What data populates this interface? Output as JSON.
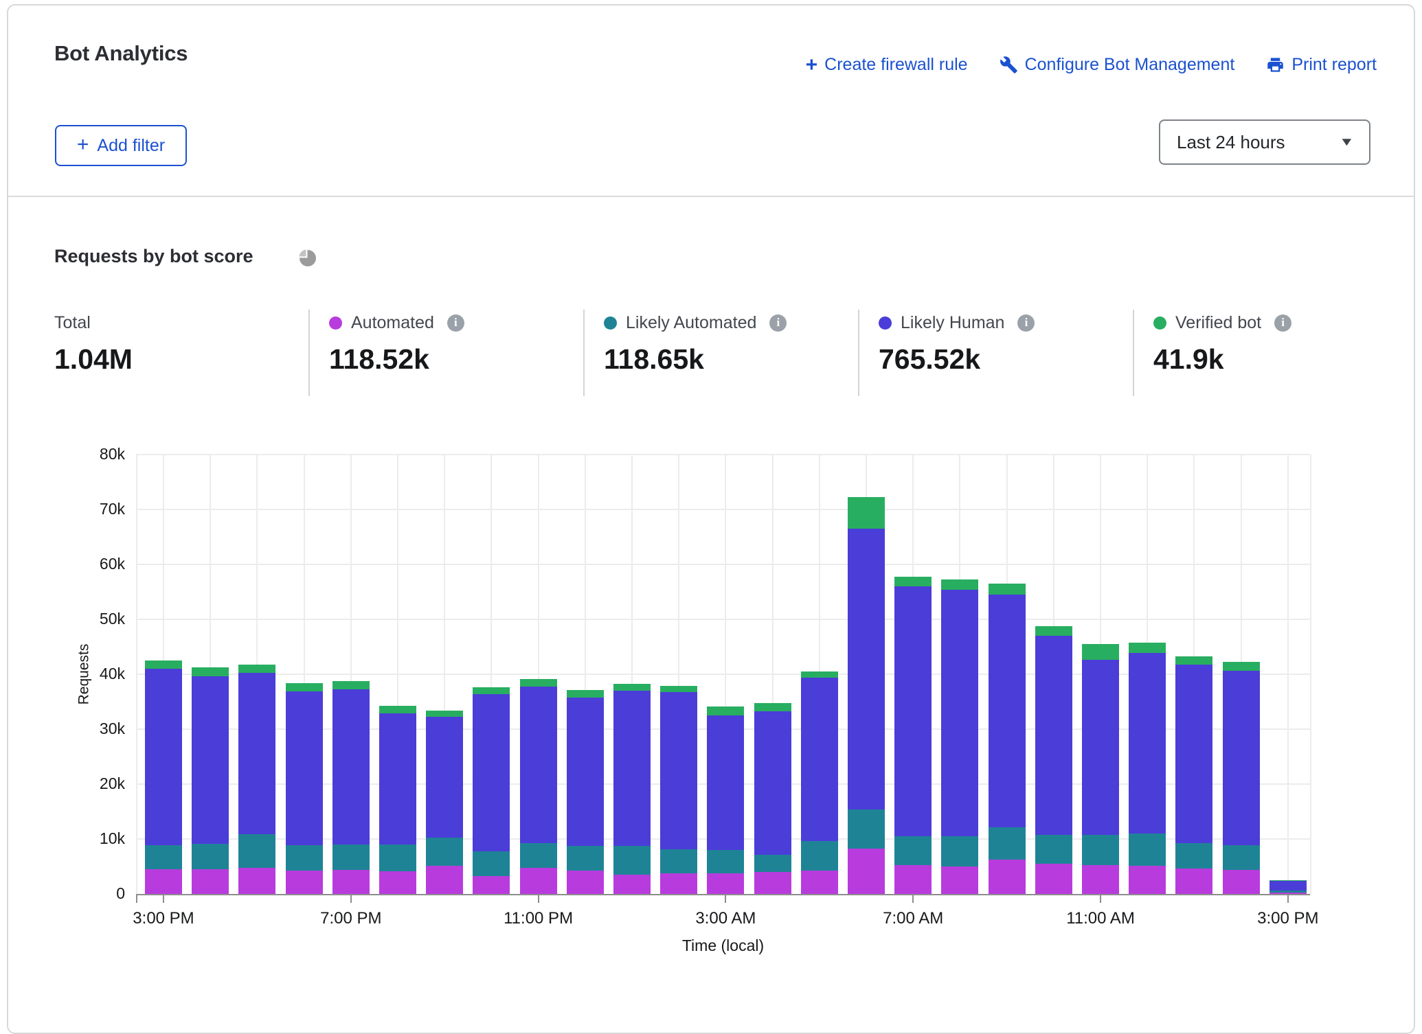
{
  "header": {
    "title": "Bot Analytics",
    "actions": [
      {
        "label": "Create firewall rule",
        "icon": "plus-icon"
      },
      {
        "label": "Configure Bot Management",
        "icon": "wrench-icon"
      },
      {
        "label": "Print report",
        "icon": "printer-icon"
      }
    ],
    "add_filter_label": "Add filter",
    "timeframe": {
      "value": "Last 24 hours"
    }
  },
  "section": {
    "title": "Requests by bot score"
  },
  "stats": {
    "total": {
      "label": "Total",
      "value": "1.04M"
    },
    "series": [
      {
        "label": "Automated",
        "value": "118.52k",
        "color": "#b83cdd"
      },
      {
        "label": "Likely Automated",
        "value": "118.65k",
        "color": "#1f8396"
      },
      {
        "label": "Likely Human",
        "value": "765.52k",
        "color": "#4b3dd8"
      },
      {
        "label": "Verified bot",
        "value": "41.9k",
        "color": "#28ae60"
      }
    ]
  },
  "chart_data": {
    "type": "bar",
    "stacked": true,
    "title": "Requests by bot score",
    "xlabel": "Time (local)",
    "ylabel": "Requests",
    "ylim": [
      0,
      80000
    ],
    "grid": true,
    "legend_position": "top",
    "ytick_values": [
      0,
      10000,
      20000,
      30000,
      40000,
      50000,
      60000,
      70000,
      80000
    ],
    "ytick_labels": [
      "0",
      "10k",
      "20k",
      "30k",
      "40k",
      "50k",
      "60k",
      "70k",
      "80k"
    ],
    "x_tick_positions": [
      0,
      4,
      8,
      12,
      16,
      20,
      24
    ],
    "x_tick_labels": [
      "3:00 PM",
      "7:00 PM",
      "11:00 PM",
      "3:00 AM",
      "7:00 AM",
      "11:00 AM",
      "3:00 PM"
    ],
    "categories": [
      "3:00 PM",
      "4:00 PM",
      "5:00 PM",
      "6:00 PM",
      "7:00 PM",
      "8:00 PM",
      "9:00 PM",
      "10:00 PM",
      "11:00 PM",
      "12:00 AM",
      "1:00 AM",
      "2:00 AM",
      "3:00 AM",
      "4:00 AM",
      "5:00 AM",
      "6:00 AM",
      "7:00 AM",
      "8:00 AM",
      "9:00 AM",
      "10:00 AM",
      "11:00 AM",
      "12:00 PM",
      "1:00 PM",
      "2:00 PM",
      "3:00 PM"
    ],
    "series": [
      {
        "name": "Automated",
        "color": "#b83cdd",
        "values": [
          4500,
          4500,
          4800,
          4200,
          4400,
          4100,
          5100,
          3300,
          4700,
          4200,
          3500,
          3700,
          3800,
          4000,
          4300,
          8300,
          5200,
          5000,
          6200,
          5500,
          5200,
          5100,
          4600,
          4400,
          300
        ]
      },
      {
        "name": "Likely Automated",
        "color": "#1f8396",
        "values": [
          4400,
          4600,
          6100,
          4700,
          4600,
          4900,
          5200,
          4400,
          4600,
          4600,
          5300,
          4400,
          4200,
          3100,
          5300,
          7100,
          5300,
          5500,
          5900,
          5200,
          5500,
          5900,
          4600,
          4500,
          300
        ]
      },
      {
        "name": "Likely Human",
        "color": "#4b3dd8",
        "values": [
          32100,
          30500,
          29300,
          28000,
          28300,
          23900,
          21900,
          28700,
          28500,
          27000,
          28200,
          28600,
          24500,
          26200,
          29800,
          51100,
          45500,
          44900,
          42400,
          36300,
          31900,
          32900,
          32600,
          31700,
          1800
        ]
      },
      {
        "name": "Verified bot",
        "color": "#28ae60",
        "values": [
          1500,
          1600,
          1500,
          1500,
          1400,
          1400,
          1200,
          1200,
          1300,
          1300,
          1200,
          1200,
          1600,
          1400,
          1100,
          5700,
          1800,
          1900,
          2000,
          1800,
          2900,
          1800,
          1500,
          1700,
          100
        ]
      }
    ],
    "bar_totals": [
      42500,
      41200,
      41700,
      38400,
      38700,
      34300,
      33400,
      37600,
      39100,
      37100,
      38200,
      37900,
      34100,
      34700,
      40500,
      72200,
      57800,
      57300,
      56500,
      48800,
      45500,
      45700,
      43300,
      42300,
      2500
    ]
  }
}
